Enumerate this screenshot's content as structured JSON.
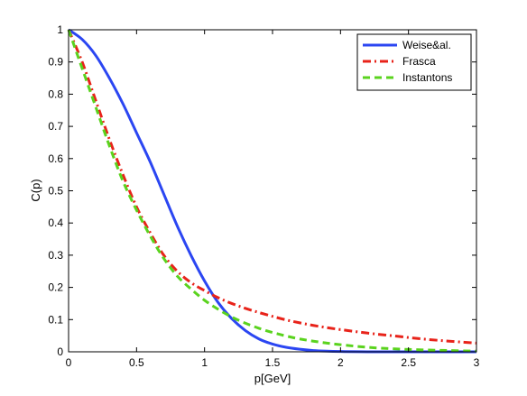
{
  "chart_data": {
    "type": "line",
    "title": "",
    "xlabel": "p[GeV]",
    "ylabel": "C(p)",
    "xlim": [
      0,
      3
    ],
    "ylim": [
      0,
      1
    ],
    "xticks": [
      0,
      0.5,
      1,
      1.5,
      2,
      2.5,
      3
    ],
    "xtick_labels": [
      "0",
      "0.5",
      "1",
      "1.5",
      "2",
      "2.5",
      "3"
    ],
    "yticks": [
      0,
      0.1,
      0.2,
      0.3,
      0.4,
      0.5,
      0.6,
      0.7,
      0.8,
      0.9,
      1
    ],
    "ytick_labels": [
      "0",
      "0.1",
      "0.2",
      "0.3",
      "0.4",
      "0.5",
      "0.6",
      "0.7",
      "0.8",
      "0.9",
      "1"
    ],
    "grid": false,
    "legend_position": "top-right",
    "x": [
      0,
      0.1,
      0.2,
      0.3,
      0.4,
      0.5,
      0.6,
      0.7,
      0.8,
      0.9,
      1.0,
      1.1,
      1.2,
      1.3,
      1.4,
      1.5,
      1.6,
      1.7,
      1.8,
      1.9,
      2.0,
      2.2,
      2.4,
      2.6,
      2.8,
      3.0
    ],
    "series": [
      {
        "name": "Weise&al.",
        "color": "#2b46f2",
        "dash": "solid",
        "values": [
          1.0,
          0.97,
          0.92,
          0.85,
          0.77,
          0.68,
          0.59,
          0.49,
          0.39,
          0.3,
          0.22,
          0.153,
          0.103,
          0.066,
          0.04,
          0.024,
          0.014,
          0.008,
          0.004,
          0.002,
          0.001,
          0.0,
          0.0,
          0.0,
          0.0,
          0.0
        ]
      },
      {
        "name": "Frasca",
        "color": "#e8231a",
        "dash": "dashdot",
        "values": [
          1.0,
          0.9,
          0.78,
          0.66,
          0.55,
          0.45,
          0.37,
          0.3,
          0.25,
          0.215,
          0.19,
          0.168,
          0.15,
          0.135,
          0.122,
          0.11,
          0.099,
          0.09,
          0.082,
          0.075,
          0.069,
          0.058,
          0.049,
          0.04,
          0.033,
          0.027
        ]
      },
      {
        "name": "Instantons",
        "color": "#5ad31e",
        "dash": "dashed",
        "values": [
          1.0,
          0.88,
          0.76,
          0.64,
          0.53,
          0.44,
          0.36,
          0.29,
          0.235,
          0.195,
          0.16,
          0.132,
          0.108,
          0.089,
          0.073,
          0.06,
          0.049,
          0.04,
          0.033,
          0.027,
          0.022,
          0.014,
          0.009,
          0.006,
          0.004,
          0.002
        ]
      }
    ]
  }
}
